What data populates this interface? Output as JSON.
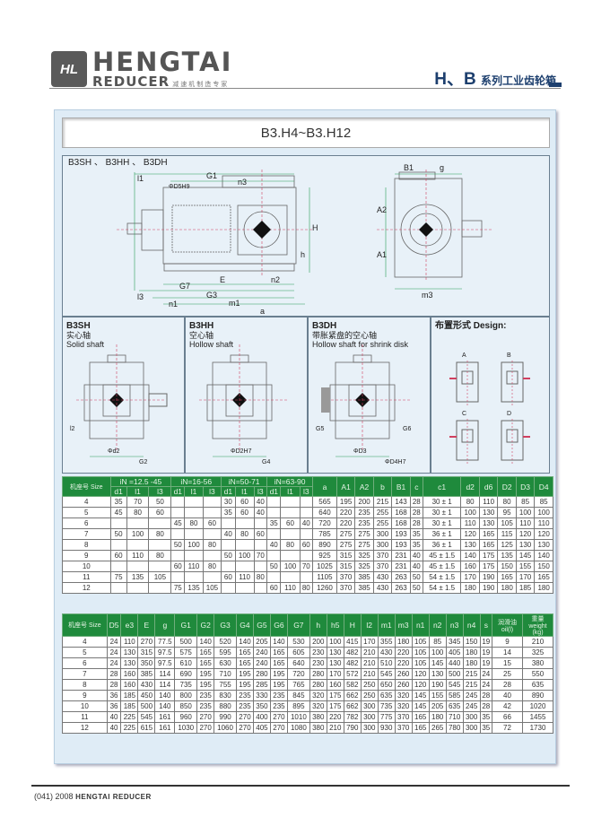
{
  "header": {
    "logo_mark": "HL",
    "brand_top": "HENGTAI",
    "brand_bottom": "REDUCER",
    "brand_slogan": "减速机制造专家",
    "series_title": "H、B",
    "series_subtitle": "系列工业齿轮箱"
  },
  "page_title": "B3.H4~B3.H12",
  "top_drawing": {
    "label": "B3SH 、 B3HH 、 B3DH",
    "dims": [
      "G1",
      "n3",
      "ΦD5H9",
      "E",
      "n2",
      "G7",
      "G3",
      "n1",
      "m1",
      "a",
      "l1",
      "l3",
      "H",
      "h",
      "B1",
      "g",
      "A1",
      "A2",
      "m3"
    ]
  },
  "views": [
    {
      "code": "B3SH",
      "cn": "实心轴",
      "en": "Solid shaft",
      "dims": [
        "Φd2",
        "G2",
        "l2"
      ]
    },
    {
      "code": "B3HH",
      "cn": "空心轴",
      "en": "Hollow shaft",
      "dims": [
        "ΦD2H7",
        "G4"
      ]
    },
    {
      "code": "B3DH",
      "cn": "带胀紧盘的空心轴",
      "en": "Hollow shaft for shrink disk",
      "dims": [
        "ΦD3",
        "ΦD4H7",
        "G5",
        "G6"
      ]
    },
    {
      "code": "布置形式 Design:",
      "cn": "",
      "en": "",
      "dims": [
        "A",
        "B",
        "C",
        "D"
      ]
    }
  ],
  "table1": {
    "size_header": "机座号 Size",
    "groups": [
      "iN =12.5 -45",
      "iN=16-56",
      "iN=50-71",
      "iN=63-90"
    ],
    "sub": [
      "d1",
      "l1",
      "l3"
    ],
    "cols": [
      "a",
      "A1",
      "A2",
      "b",
      "B1",
      "c",
      "c1",
      "d2",
      "d6",
      "D2",
      "D3",
      "D4"
    ],
    "rows": [
      [
        "4",
        "35",
        "70",
        "50",
        "",
        "",
        "",
        "30",
        "60",
        "40",
        "",
        "",
        "",
        "565",
        "195",
        "200",
        "215",
        "143",
        "28",
        "30 ± 1",
        "80",
        "110",
        "80",
        "85",
        "85"
      ],
      [
        "5",
        "45",
        "80",
        "60",
        "",
        "",
        "",
        "35",
        "60",
        "40",
        "",
        "",
        "",
        "640",
        "220",
        "235",
        "255",
        "168",
        "28",
        "30 ± 1",
        "100",
        "130",
        "95",
        "100",
        "100"
      ],
      [
        "6",
        "",
        "",
        "",
        "45",
        "80",
        "60",
        "",
        "",
        "",
        "35",
        "60",
        "40",
        "720",
        "220",
        "235",
        "255",
        "168",
        "28",
        "30 ± 1",
        "110",
        "130",
        "105",
        "110",
        "110"
      ],
      [
        "7",
        "50",
        "100",
        "80",
        "",
        "",
        "",
        "40",
        "80",
        "60",
        "",
        "",
        "",
        "785",
        "275",
        "275",
        "300",
        "193",
        "35",
        "36 ± 1",
        "120",
        "165",
        "115",
        "120",
        "120"
      ],
      [
        "8",
        "",
        "",
        "",
        "50",
        "100",
        "80",
        "",
        "",
        "",
        "40",
        "80",
        "60",
        "890",
        "275",
        "275",
        "300",
        "193",
        "35",
        "36 ± 1",
        "130",
        "165",
        "125",
        "130",
        "130"
      ],
      [
        "9",
        "60",
        "110",
        "80",
        "",
        "",
        "",
        "50",
        "100",
        "70",
        "",
        "",
        "",
        "925",
        "315",
        "325",
        "370",
        "231",
        "40",
        "45 ± 1.5",
        "140",
        "175",
        "135",
        "145",
        "140"
      ],
      [
        "10",
        "",
        "",
        "",
        "60",
        "110",
        "80",
        "",
        "",
        "",
        "50",
        "100",
        "70",
        "1025",
        "315",
        "325",
        "370",
        "231",
        "40",
        "45 ± 1.5",
        "160",
        "175",
        "150",
        "155",
        "150"
      ],
      [
        "11",
        "75",
        "135",
        "105",
        "",
        "",
        "",
        "60",
        "110",
        "80",
        "",
        "",
        "",
        "1105",
        "370",
        "385",
        "430",
        "263",
        "50",
        "54 ± 1.5",
        "170",
        "190",
        "165",
        "170",
        "165"
      ],
      [
        "12",
        "",
        "",
        "",
        "75",
        "135",
        "105",
        "",
        "",
        "",
        "60",
        "110",
        "80",
        "1260",
        "370",
        "385",
        "430",
        "263",
        "50",
        "54 ± 1.5",
        "180",
        "190",
        "180",
        "185",
        "180"
      ]
    ]
  },
  "table2": {
    "size_header": "机座号 Size",
    "cols": [
      "D5",
      "e3",
      "E",
      "g",
      "G1",
      "G2",
      "G3",
      "G4",
      "G5",
      "G6",
      "G7",
      "h",
      "h5",
      "H",
      "l2",
      "m1",
      "m3",
      "n1",
      "n2",
      "n3",
      "n4",
      "s",
      "润滑油 oil(l)",
      "重量 weight (kg)"
    ],
    "rows": [
      [
        "4",
        "24",
        "110",
        "270",
        "77.5",
        "500",
        "140",
        "520",
        "140",
        "205",
        "140",
        "530",
        "200",
        "100",
        "415",
        "170",
        "355",
        "180",
        "105",
        "85",
        "345",
        "150",
        "19",
        "9",
        "210"
      ],
      [
        "5",
        "24",
        "130",
        "315",
        "97.5",
        "575",
        "165",
        "595",
        "165",
        "240",
        "165",
        "605",
        "230",
        "130",
        "482",
        "210",
        "430",
        "220",
        "105",
        "100",
        "405",
        "180",
        "19",
        "14",
        "325"
      ],
      [
        "6",
        "24",
        "130",
        "350",
        "97.5",
        "610",
        "165",
        "630",
        "165",
        "240",
        "165",
        "640",
        "230",
        "130",
        "482",
        "210",
        "510",
        "220",
        "105",
        "145",
        "440",
        "180",
        "19",
        "15",
        "380"
      ],
      [
        "7",
        "28",
        "160",
        "385",
        "114",
        "690",
        "195",
        "710",
        "195",
        "280",
        "195",
        "720",
        "280",
        "170",
        "572",
        "210",
        "545",
        "260",
        "120",
        "130",
        "500",
        "215",
        "24",
        "25",
        "550"
      ],
      [
        "8",
        "28",
        "160",
        "430",
        "114",
        "735",
        "195",
        "755",
        "195",
        "285",
        "195",
        "765",
        "280",
        "160",
        "582",
        "250",
        "650",
        "260",
        "120",
        "190",
        "545",
        "215",
        "24",
        "28",
        "635"
      ],
      [
        "9",
        "36",
        "185",
        "450",
        "140",
        "800",
        "235",
        "830",
        "235",
        "330",
        "235",
        "845",
        "320",
        "175",
        "662",
        "250",
        "635",
        "320",
        "145",
        "155",
        "585",
        "245",
        "28",
        "40",
        "890"
      ],
      [
        "10",
        "36",
        "185",
        "500",
        "140",
        "850",
        "235",
        "880",
        "235",
        "350",
        "235",
        "895",
        "320",
        "175",
        "662",
        "300",
        "735",
        "320",
        "145",
        "205",
        "635",
        "245",
        "28",
        "42",
        "1020"
      ],
      [
        "11",
        "40",
        "225",
        "545",
        "161",
        "960",
        "270",
        "990",
        "270",
        "400",
        "270",
        "1010",
        "380",
        "220",
        "782",
        "300",
        "775",
        "370",
        "165",
        "180",
        "710",
        "300",
        "35",
        "66",
        "1455"
      ],
      [
        "12",
        "40",
        "225",
        "615",
        "161",
        "1030",
        "270",
        "1060",
        "270",
        "405",
        "270",
        "1080",
        "380",
        "210",
        "790",
        "300",
        "930",
        "370",
        "165",
        "265",
        "780",
        "300",
        "35",
        "72",
        "1730"
      ]
    ]
  },
  "footer": {
    "page": "(041)",
    "year": "2008",
    "brand": "HENGTAI REDUCER"
  },
  "colors": {
    "header_green": "#1f8a3c",
    "panel_blue": "#dfecf6",
    "brand_navy": "#1d3f6e"
  }
}
